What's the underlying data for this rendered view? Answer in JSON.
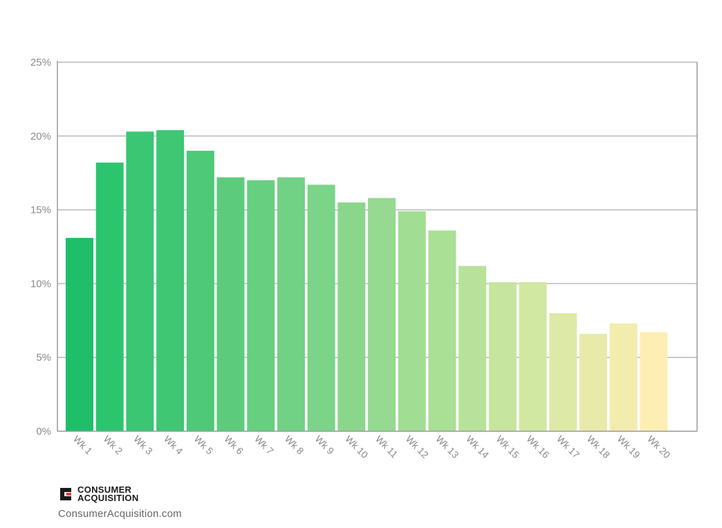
{
  "chart_data": {
    "type": "bar",
    "categories": [
      "Wk 1",
      "Wk 2",
      "Wk 3",
      "Wk 4",
      "Wk 5",
      "Wk 6",
      "Wk 7",
      "Wk 8",
      "Wk 9",
      "Wk 10",
      "Wk 11",
      "Wk 12",
      "Wk 13",
      "Wk 14",
      "Wk 15",
      "Wk 16",
      "Wk 17",
      "Wk 18",
      "Wk 19",
      "Wk 20"
    ],
    "values": [
      13.1,
      18.2,
      20.3,
      20.4,
      19.0,
      17.2,
      17.0,
      17.2,
      16.7,
      15.5,
      15.8,
      14.9,
      13.6,
      11.2,
      10.1,
      10.1,
      8.0,
      6.6,
      7.3,
      6.7
    ],
    "bar_colors": [
      "#1fbf6a",
      "#2dc46f",
      "#3ac673",
      "#3fc774",
      "#4dc977",
      "#5ccc7c",
      "#67cf80",
      "#71d184",
      "#7cd488",
      "#8ad78c",
      "#95da90",
      "#a1dd93",
      "#aadf96",
      "#b8e29b",
      "#c6e59f",
      "#d0e8a2",
      "#dde9a6",
      "#e8eaaa",
      "#f2ecae",
      "#fdefb3"
    ],
    "yticks": [
      "0%",
      "5%",
      "10%",
      "15%",
      "20%",
      "25%"
    ],
    "ylim": [
      0,
      25
    ],
    "title": "",
    "xlabel": "",
    "ylabel": "",
    "grid": true,
    "grid_color": "#b9b9b9",
    "axis_color": "#9a9a9a"
  },
  "branding": {
    "logo_line1": "CONSUMER",
    "logo_line2": "ACQUISITION",
    "logo_accent": "#e63c3c",
    "logo_dark": "#1a1a1a",
    "website": "ConsumerAcquisition.com"
  }
}
